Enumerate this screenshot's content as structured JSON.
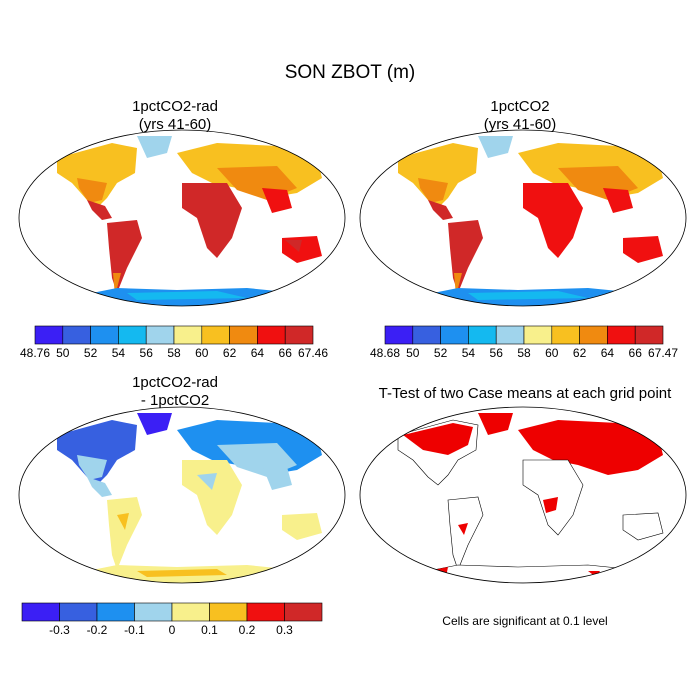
{
  "title": "SON ZBOT (m)",
  "panels": [
    {
      "id": "p1",
      "title": "1pctCO2-rad\n(yrs 41-60)",
      "fill": "absolute"
    },
    {
      "id": "p2",
      "title": "1pctCO2\n(yrs 41-60)",
      "fill": "absolute"
    },
    {
      "id": "p3",
      "title": "1pctCO2-rad\n- 1pctCO2",
      "fill": "difference"
    },
    {
      "id": "p4",
      "title": "T-Test of two Case means at each grid point",
      "fill": "significance",
      "note": "Cells are significant at 0.1 level"
    }
  ],
  "colorbars": {
    "p1": {
      "colors": [
        "#3b1ff5",
        "#3760e0",
        "#1e90f0",
        "#14b9f0",
        "#a0d4ec",
        "#f8f08c",
        "#f8c020",
        "#f08a10",
        "#f01010",
        "#d02828"
      ],
      "labels": [
        "48.76",
        "50",
        "52",
        "54",
        "56",
        "58",
        "60",
        "62",
        "64",
        "66",
        "67.46"
      ]
    },
    "p2": {
      "colors": [
        "#3b1ff5",
        "#3760e0",
        "#1e90f0",
        "#14b9f0",
        "#a0d4ec",
        "#f8f08c",
        "#f8c020",
        "#f08a10",
        "#f01010",
        "#d02828"
      ],
      "labels": [
        "48.68",
        "50",
        "52",
        "54",
        "56",
        "58",
        "60",
        "62",
        "64",
        "66",
        "67.47"
      ]
    },
    "p3": {
      "colors": [
        "#3b1ff5",
        "#3760e0",
        "#1e90f0",
        "#a0d4ec",
        "#f8f08c",
        "#f8c020",
        "#f01010",
        "#d02828"
      ],
      "labels": [
        "-0.3",
        "-0.2",
        "-0.1",
        "0",
        "0.1",
        "0.2",
        "0.3"
      ]
    }
  }
}
